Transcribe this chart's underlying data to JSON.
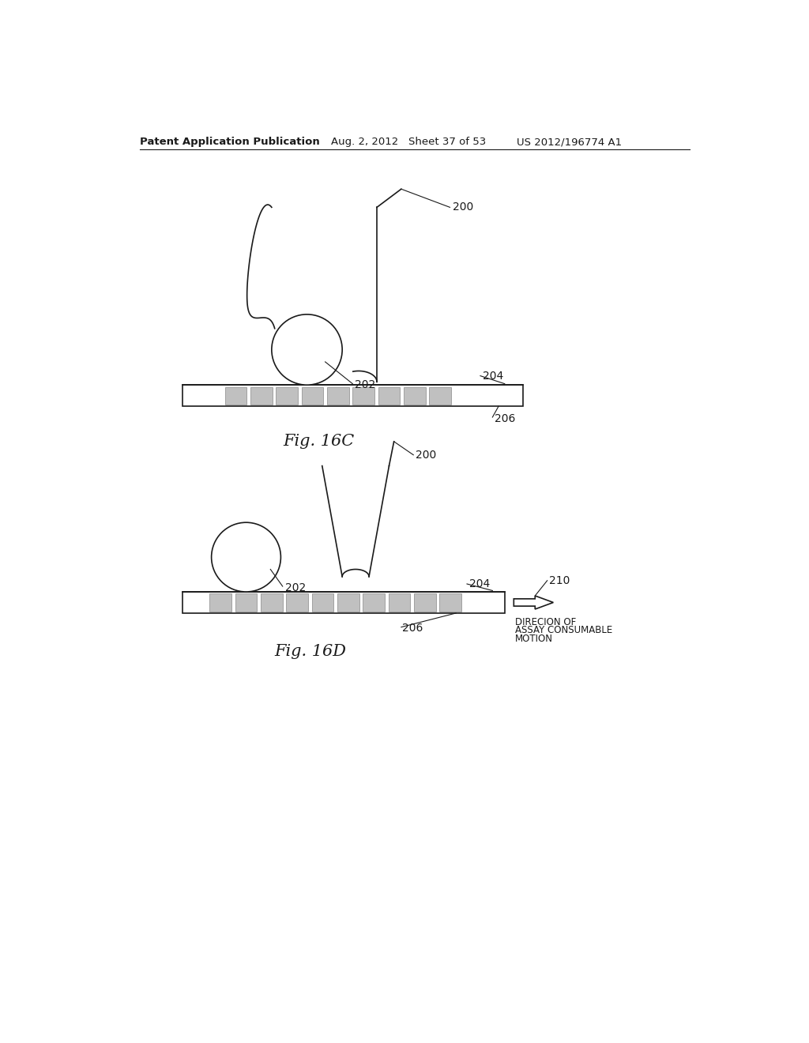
{
  "header_left": "Patent Application Publication",
  "header_mid": "Aug. 2, 2012   Sheet 37 of 53",
  "header_right": "US 2012/196774 A1",
  "fig_16c_label": "Fig. 16C",
  "fig_16d_label": "Fig. 16D",
  "label_200": "200",
  "label_202": "202",
  "label_204": "204",
  "label_206": "206",
  "label_210": "210",
  "arrow_text_1": "DIRECION OF",
  "arrow_text_2": "ASSAY CONSUMABLE",
  "arrow_text_3": "MOTION",
  "bg_color": "#ffffff",
  "line_color": "#1a1a1a",
  "gray_fill": "#c0c0c0",
  "gray_border": "#888888"
}
